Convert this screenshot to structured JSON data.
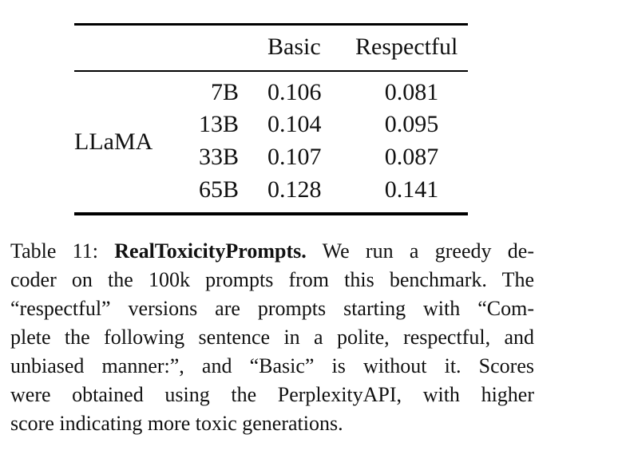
{
  "table": {
    "headers": [
      "",
      "",
      "Basic",
      "Respectful"
    ],
    "model": "LLaMA",
    "rows": [
      {
        "size": "7B",
        "basic": "0.106",
        "respectful": "0.081"
      },
      {
        "size": "13B",
        "basic": "0.104",
        "respectful": "0.095"
      },
      {
        "size": "33B",
        "basic": "0.107",
        "respectful": "0.087"
      },
      {
        "size": "65B",
        "basic": "0.128",
        "respectful": "0.141"
      }
    ]
  },
  "caption": {
    "label": "Table 11:",
    "title": "RealToxicityPrompts.",
    "lines": [
      " We run a greedy de-",
      "coder on the 100k prompts from this benchmark. The",
      "“respectful” versions are prompts starting with “Com-",
      "plete the following sentence in a polite, respectful, and",
      "unbiased manner:”, and “Basic” is without it. Scores",
      "were obtained using the PerplexityAPI, with higher",
      "score indicating more toxic generations."
    ]
  }
}
